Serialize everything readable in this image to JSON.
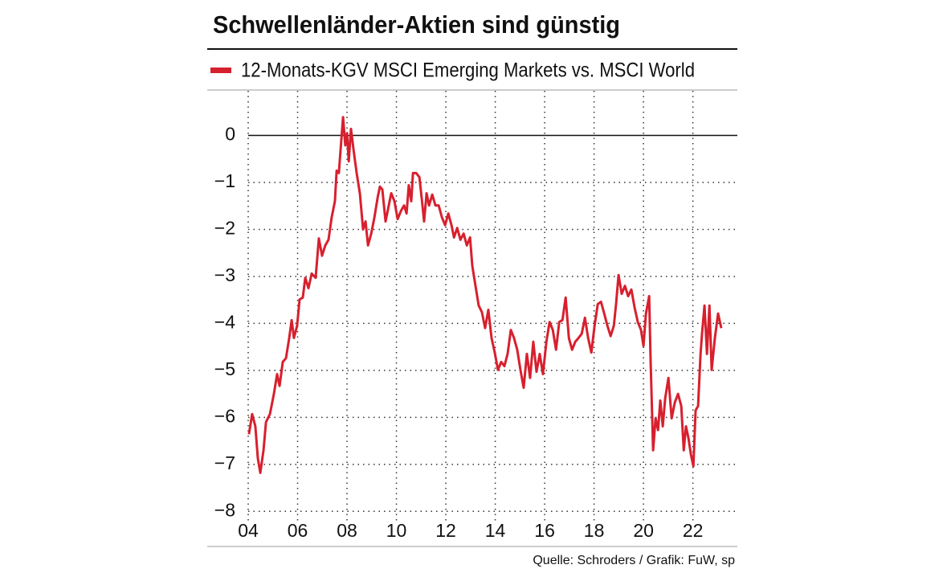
{
  "chart_data": {
    "type": "line",
    "title": "Schwellenländer-Aktien sind günstig",
    "source": "Quelle: Schroders / Grafik: FuW, sp",
    "xlim": [
      2004,
      2023.8
    ],
    "ylim": [
      -8.2,
      0.95
    ],
    "xticks": [
      {
        "value": 2004,
        "label": "04"
      },
      {
        "value": 2006,
        "label": "06"
      },
      {
        "value": 2008,
        "label": "08"
      },
      {
        "value": 2010,
        "label": "10"
      },
      {
        "value": 2012,
        "label": "12"
      },
      {
        "value": 2014,
        "label": "14"
      },
      {
        "value": 2016,
        "label": "16"
      },
      {
        "value": 2018,
        "label": "18"
      },
      {
        "value": 2020,
        "label": "20"
      },
      {
        "value": 2022,
        "label": "22"
      }
    ],
    "yticks": [
      0,
      {
        "value": -1,
        "label": "−1"
      },
      {
        "value": -2,
        "label": "−2"
      },
      {
        "value": -3,
        "label": "−3"
      },
      {
        "value": -4,
        "label": "−4"
      },
      {
        "value": -5,
        "label": "−5"
      },
      {
        "value": -6,
        "label": "−6"
      },
      {
        "value": -7,
        "label": "−7"
      },
      {
        "value": -8,
        "label": "−8"
      }
    ],
    "grid": true,
    "x": [
      2004.03,
      2004.16,
      2004.29,
      2004.39,
      2004.49,
      2004.62,
      2004.72,
      2004.88,
      2005.04,
      2005.17,
      2005.27,
      2005.4,
      2005.53,
      2005.66,
      2005.76,
      2005.85,
      2005.98,
      2006.08,
      2006.21,
      2006.31,
      2006.44,
      2006.57,
      2006.73,
      2006.86,
      2006.99,
      2007.12,
      2007.25,
      2007.38,
      2007.51,
      2007.58,
      2007.67,
      2007.77,
      2007.84,
      2007.93,
      2008.0,
      2008.07,
      2008.16,
      2008.26,
      2008.39,
      2008.52,
      2008.65,
      2008.75,
      2008.85,
      2008.98,
      2009.11,
      2009.24,
      2009.33,
      2009.43,
      2009.56,
      2009.69,
      2009.79,
      2009.92,
      2010.05,
      2010.18,
      2010.31,
      2010.41,
      2010.5,
      2010.6,
      2010.67,
      2010.8,
      2010.93,
      2011.02,
      2011.12,
      2011.22,
      2011.32,
      2011.45,
      2011.58,
      2011.71,
      2011.84,
      2011.97,
      2012.1,
      2012.23,
      2012.33,
      2012.46,
      2012.59,
      2012.72,
      2012.85,
      2012.98,
      2013.07,
      2013.2,
      2013.33,
      2013.46,
      2013.59,
      2013.72,
      2013.85,
      2013.98,
      2014.11,
      2014.24,
      2014.37,
      2014.5,
      2014.63,
      2014.76,
      2014.89,
      2015.02,
      2015.15,
      2015.28,
      2015.41,
      2015.54,
      2015.67,
      2015.8,
      2015.93,
      2016.07,
      2016.2,
      2016.33,
      2016.46,
      2016.59,
      2016.72,
      2016.85,
      2016.98,
      2017.11,
      2017.24,
      2017.37,
      2017.5,
      2017.63,
      2017.76,
      2017.89,
      2018.02,
      2018.15,
      2018.28,
      2018.41,
      2018.54,
      2018.67,
      2018.8,
      2018.89,
      2018.99,
      2019.12,
      2019.25,
      2019.38,
      2019.51,
      2019.64,
      2019.77,
      2019.9,
      2020.0,
      2020.1,
      2020.23,
      2020.29,
      2020.39,
      2020.49,
      2020.59,
      2020.68,
      2020.78,
      2020.88,
      2021.01,
      2021.14,
      2021.27,
      2021.4,
      2021.53,
      2021.63,
      2021.72,
      2021.82,
      2021.92,
      2022.02,
      2022.11,
      2022.21,
      2022.31,
      2022.37,
      2022.47,
      2022.57,
      2022.67,
      2022.76,
      2022.89,
      2023.02,
      2023.15
    ],
    "series": [
      {
        "name": "12-Monats-KGV MSCI Emerging Markets vs. MSCI World",
        "color": "#d7202e",
        "values": [
          -6.36,
          -5.93,
          -6.19,
          -6.87,
          -7.18,
          -6.7,
          -6.1,
          -5.93,
          -5.5,
          -5.08,
          -5.33,
          -4.82,
          -4.74,
          -4.31,
          -3.93,
          -4.31,
          -4.05,
          -3.49,
          -3.45,
          -3.03,
          -3.25,
          -2.94,
          -3.03,
          -2.19,
          -2.56,
          -2.34,
          -2.22,
          -1.74,
          -1.4,
          -0.75,
          -0.8,
          -0.09,
          0.39,
          -0.21,
          0.05,
          -0.55,
          0.14,
          -0.29,
          -0.8,
          -1.23,
          -2.0,
          -1.83,
          -2.34,
          -2.09,
          -1.74,
          -1.32,
          -1.09,
          -1.15,
          -1.83,
          -1.49,
          -1.23,
          -1.4,
          -1.78,
          -1.61,
          -1.49,
          -1.66,
          -1.06,
          -1.4,
          -0.8,
          -0.8,
          -0.89,
          -1.32,
          -1.83,
          -1.23,
          -1.49,
          -1.26,
          -1.49,
          -1.49,
          -1.74,
          -1.91,
          -1.66,
          -1.91,
          -2.17,
          -1.97,
          -2.22,
          -2.09,
          -2.34,
          -2.17,
          -2.77,
          -3.2,
          -3.62,
          -3.76,
          -4.1,
          -3.71,
          -4.31,
          -4.62,
          -4.99,
          -4.82,
          -4.91,
          -4.65,
          -4.14,
          -4.31,
          -4.56,
          -4.99,
          -5.37,
          -4.65,
          -5.16,
          -4.39,
          -5.03,
          -4.65,
          -5.08,
          -4.39,
          -3.97,
          -4.14,
          -4.56,
          -3.97,
          -3.93,
          -3.45,
          -4.31,
          -4.56,
          -4.39,
          -4.31,
          -4.22,
          -3.88,
          -4.31,
          -4.62,
          -4.05,
          -3.59,
          -3.54,
          -3.79,
          -4.05,
          -4.27,
          -4.05,
          -3.59,
          -2.97,
          -3.37,
          -3.2,
          -3.42,
          -3.28,
          -3.66,
          -3.97,
          -4.14,
          -4.48,
          -3.79,
          -3.42,
          -4.82,
          -6.7,
          -6.02,
          -6.27,
          -5.64,
          -6.19,
          -5.59,
          -5.16,
          -6.02,
          -5.68,
          -5.5,
          -5.76,
          -6.7,
          -6.19,
          -6.44,
          -6.79,
          -7.04,
          -5.85,
          -5.76,
          -4.65,
          -4.22,
          -3.62,
          -4.65,
          -3.62,
          -4.99,
          -4.31,
          -3.79,
          -4.1
        ]
      }
    ]
  }
}
